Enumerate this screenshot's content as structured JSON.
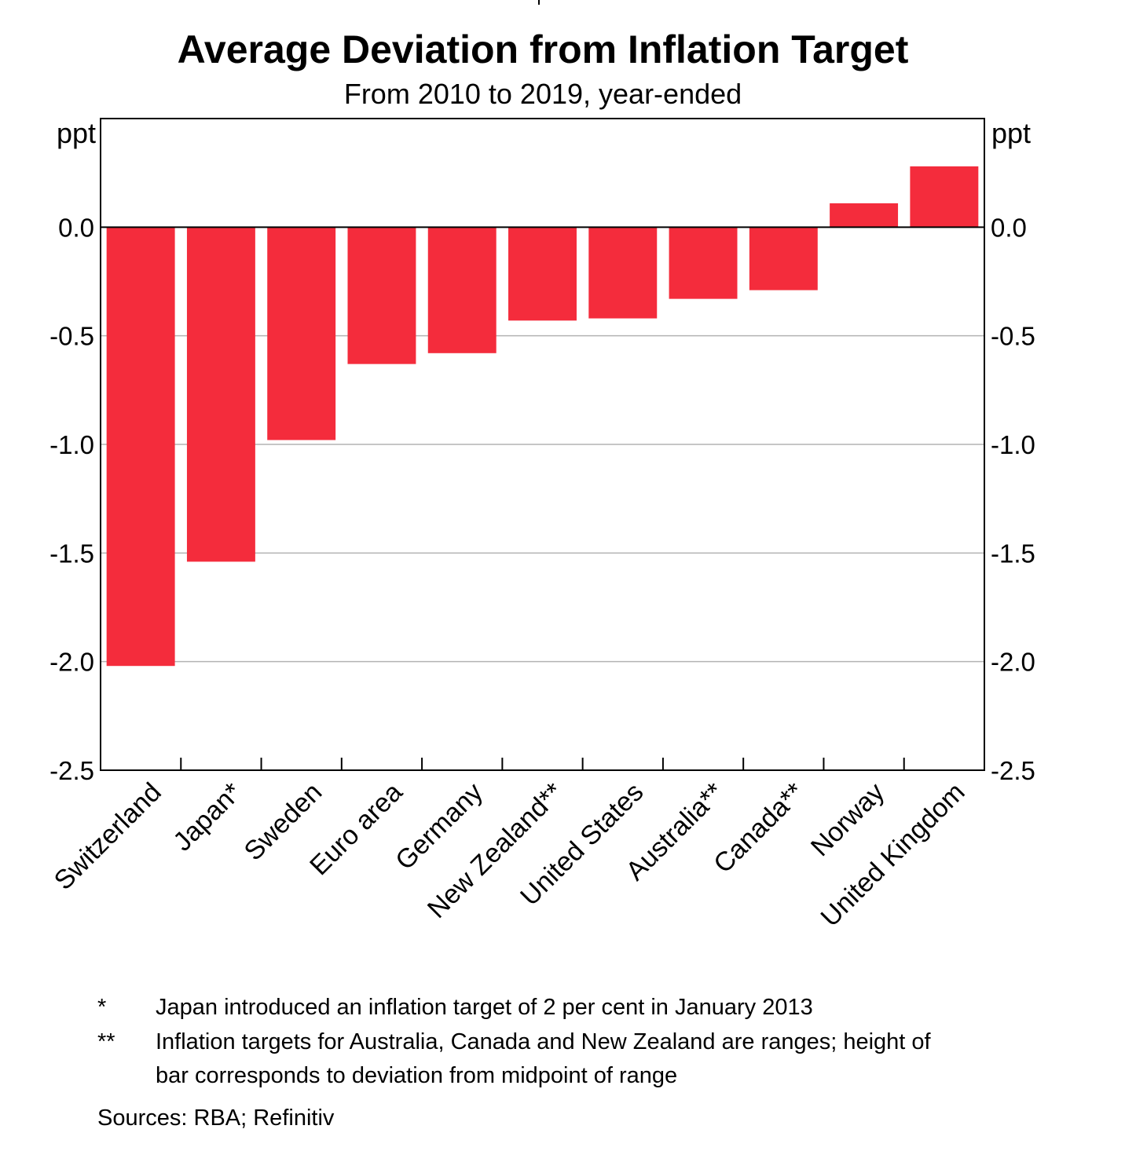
{
  "chart_data": {
    "type": "bar",
    "title": "Average Deviation from Inflation Target",
    "subtitle": "From 2010 to 2019, year-ended",
    "ylabel": "ppt",
    "ylabel_right": "ppt",
    "categories": [
      "Switzerland",
      "Japan*",
      "Sweden",
      "Euro area",
      "Germany",
      "New Zealand**",
      "United States",
      "Australia**",
      "Canada**",
      "Norway",
      "United Kingdom"
    ],
    "values": [
      -2.02,
      -1.54,
      -0.98,
      -0.63,
      -0.58,
      -0.43,
      -0.42,
      -0.33,
      -0.29,
      0.11,
      0.28
    ],
    "ylim": [
      -2.5,
      0.5
    ],
    "yticks": [
      0.0,
      -0.5,
      -1.0,
      -1.5,
      -2.0,
      -2.5
    ],
    "ytick_labels": [
      "0.0",
      "-0.5",
      "-1.0",
      "-1.5",
      "-2.0",
      "-2.5"
    ],
    "grid": true,
    "bar_color": "#f42c3c",
    "grid_color": "#b3b3b3"
  },
  "notes": [
    {
      "mark": "*",
      "text": "Japan introduced an inflation target of 2 per cent in January 2013"
    },
    {
      "mark": "**",
      "text": "Inflation targets for Australia, Canada and New Zealand are ranges; height of bar corresponds to deviation from midpoint of range"
    }
  ],
  "sources": "Sources: RBA; Refinitiv"
}
